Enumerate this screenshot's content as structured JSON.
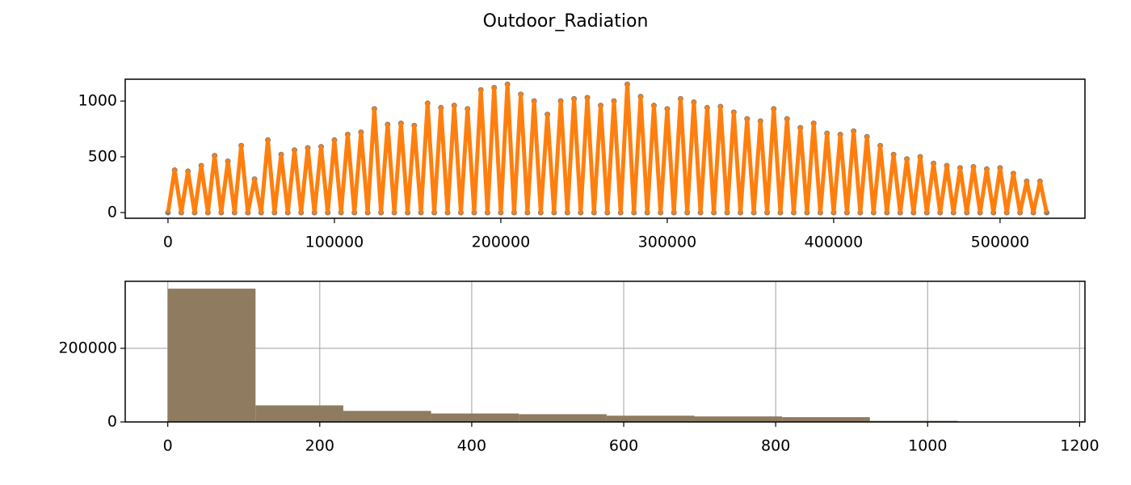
{
  "title": "Outdoor_Radiation",
  "chart_data": [
    {
      "type": "line",
      "x": [
        0,
        4000,
        8000,
        12000,
        16000,
        20000,
        24000,
        28000,
        32000,
        36000,
        40000,
        44000,
        48000,
        52000,
        56000,
        60000,
        64000,
        68000,
        72000,
        76000,
        80000,
        84000,
        88000,
        92000,
        96000,
        100000,
        104000,
        108000,
        112000,
        116000,
        120000,
        124000,
        128000,
        132000,
        136000,
        140000,
        144000,
        148000,
        152000,
        156000,
        160000,
        164000,
        168000,
        172000,
        176000,
        180000,
        184000,
        188000,
        192000,
        196000,
        200000,
        204000,
        208000,
        212000,
        216000,
        220000,
        224000,
        228000,
        232000,
        236000,
        240000,
        244000,
        248000,
        252000,
        256000,
        260000,
        264000,
        268000,
        272000,
        276000,
        280000,
        284000,
        288000,
        292000,
        296000,
        300000,
        304000,
        308000,
        312000,
        316000,
        320000,
        324000,
        328000,
        332000,
        336000,
        340000,
        344000,
        348000,
        352000,
        356000,
        360000,
        364000,
        368000,
        372000,
        376000,
        380000,
        384000,
        388000,
        392000,
        396000,
        400000,
        404000,
        408000,
        412000,
        416000,
        420000,
        424000,
        428000,
        432000,
        436000,
        440000,
        444000,
        448000,
        452000,
        456000,
        460000,
        464000,
        468000,
        472000,
        476000,
        480000,
        484000,
        488000,
        492000,
        496000,
        500000,
        504000,
        508000,
        512000,
        516000,
        520000,
        524000,
        528000
      ],
      "series": [
        {
          "color": "#ff7f0e",
          "marker_color": "#7f7f7f",
          "values": [
            0,
            380,
            0,
            370,
            0,
            420,
            0,
            510,
            0,
            460,
            0,
            600,
            0,
            300,
            0,
            650,
            0,
            520,
            0,
            560,
            0,
            580,
            0,
            590,
            0,
            650,
            0,
            700,
            0,
            720,
            0,
            930,
            0,
            790,
            0,
            800,
            0,
            780,
            0,
            980,
            0,
            940,
            0,
            960,
            0,
            930,
            0,
            1100,
            0,
            1120,
            0,
            1150,
            0,
            1060,
            0,
            1000,
            0,
            880,
            0,
            1000,
            0,
            1020,
            0,
            1030,
            0,
            960,
            0,
            1000,
            0,
            1150,
            0,
            1040,
            0,
            960,
            0,
            930,
            0,
            1020,
            0,
            990,
            0,
            940,
            0,
            950,
            0,
            900,
            0,
            840,
            0,
            820,
            0,
            930,
            0,
            840,
            0,
            760,
            0,
            800,
            0,
            710,
            0,
            700,
            0,
            730,
            0,
            680,
            0,
            600,
            0,
            520,
            0,
            480,
            0,
            500,
            0,
            440,
            0,
            420,
            0,
            400,
            0,
            410,
            0,
            390,
            0,
            400,
            0,
            350,
            0,
            280,
            0,
            280,
            0
          ]
        }
      ],
      "xlim": [
        -25700,
        551000
      ],
      "ylim": [
        -51,
        1196
      ],
      "xticks": [
        0,
        100000,
        200000,
        300000,
        400000,
        500000
      ],
      "yticks": [
        0,
        500,
        1000
      ],
      "grid": false
    },
    {
      "type": "histogram",
      "bins": [
        0,
        115.5,
        231,
        346.5,
        462,
        577.5,
        693,
        808.5,
        924,
        1039.5,
        1155
      ],
      "values": [
        362000,
        45000,
        30000,
        23000,
        21000,
        17000,
        15000,
        13000,
        3000,
        600
      ],
      "color": "#8e7b60",
      "xlim": [
        -56,
        1207
      ],
      "ylim": [
        0,
        382000
      ],
      "xticks": [
        0,
        200,
        400,
        600,
        800,
        1000,
        1200
      ],
      "yticks": [
        0,
        200000
      ],
      "grid": true
    }
  ]
}
